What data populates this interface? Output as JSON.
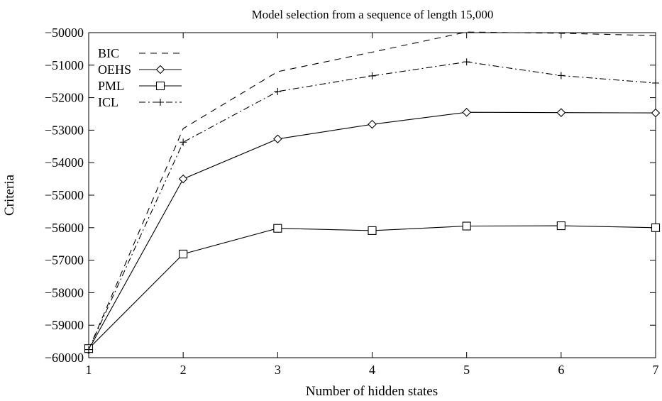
{
  "chart_data": {
    "type": "line",
    "title": "Model selection from a sequence of length 15,000",
    "xlabel": "Number of hidden states",
    "ylabel": "Criteria",
    "x": [
      1,
      2,
      3,
      4,
      5,
      6,
      7
    ],
    "xlim": [
      1,
      7
    ],
    "ylim": [
      -60000,
      -50000
    ],
    "xticks": [
      "1",
      "2",
      "3",
      "4",
      "5",
      "6",
      "7"
    ],
    "yticks": [
      "−60000",
      "−59000",
      "−58000",
      "−57000",
      "−56000",
      "−55000",
      "−54000",
      "−53000",
      "−52000",
      "−51000",
      "−50000"
    ],
    "grid": false,
    "legend_position": "top-left",
    "series": [
      {
        "name": "BIC",
        "style": "dashed",
        "marker": "none",
        "values": [
          -59750,
          -52950,
          -51200,
          -50600,
          -49980,
          -50020,
          -50090
        ]
      },
      {
        "name": "OEHS",
        "style": "solid",
        "marker": "diamond",
        "values": [
          -59750,
          -54500,
          -53270,
          -52820,
          -52450,
          -52460,
          -52470
        ]
      },
      {
        "name": "PML",
        "style": "solid",
        "marker": "square",
        "values": [
          -59720,
          -56810,
          -56020,
          -56090,
          -55950,
          -55940,
          -56000
        ]
      },
      {
        "name": "ICL",
        "style": "dashdot",
        "marker": "plus",
        "values": [
          -59750,
          -53370,
          -51810,
          -51330,
          -50900,
          -51320,
          -51550
        ]
      }
    ]
  }
}
